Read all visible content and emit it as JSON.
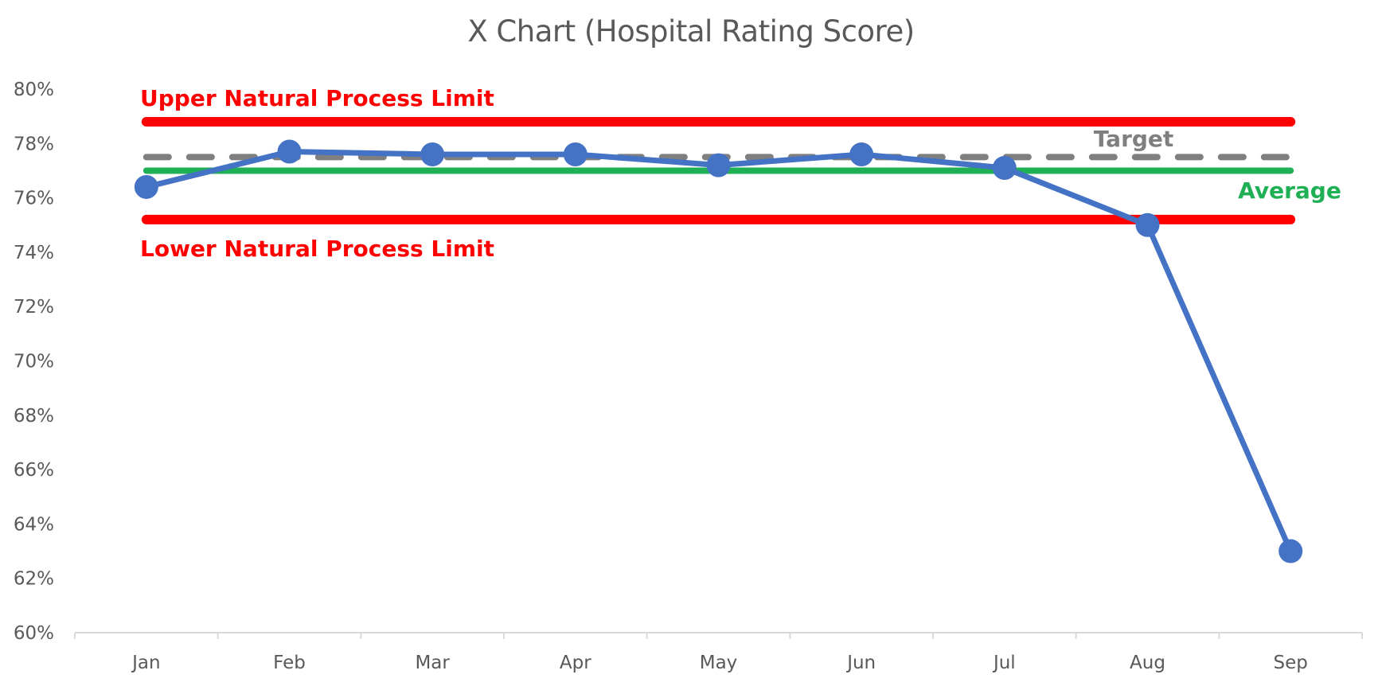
{
  "chart_data": {
    "type": "line",
    "title": "X Chart (Hospital Rating Score)",
    "xlabel": "",
    "ylabel": "",
    "categories": [
      "Jan",
      "Feb",
      "Mar",
      "Apr",
      "May",
      "Jun",
      "Jul",
      "Aug",
      "Sep"
    ],
    "series": [
      {
        "name": "Hospital Rating Score",
        "values": [
          76.4,
          77.7,
          77.6,
          77.6,
          77.2,
          77.6,
          77.1,
          75.0,
          63.0
        ],
        "color": "#4472C4"
      }
    ],
    "reference_lines": [
      {
        "name": "Upper Natural Process Limit",
        "value": 78.8,
        "color": "#FF0000",
        "style": "solid",
        "label": "Upper Natural Process Limit"
      },
      {
        "name": "Target",
        "value": 77.5,
        "color": "#7F7F7F",
        "style": "dashed",
        "label": "Target"
      },
      {
        "name": "Average",
        "value": 77.0,
        "color": "#1FAF55",
        "style": "solid",
        "label": "Average"
      },
      {
        "name": "Lower Natural Process Limit",
        "value": 75.2,
        "color": "#FF0000",
        "style": "solid",
        "label": "Lower Natural Process Limit"
      }
    ],
    "ylim": [
      60,
      80
    ],
    "yticks": [
      60,
      62,
      64,
      66,
      68,
      70,
      72,
      74,
      76,
      78,
      80
    ],
    "ytick_labels": [
      "60%",
      "62%",
      "64%",
      "66%",
      "68%",
      "70%",
      "72%",
      "74%",
      "76%",
      "78%",
      "80%"
    ],
    "y_format": "percent",
    "grid": false,
    "legend": "none (inline labels)"
  },
  "labels": {
    "title": "X Chart (Hospital Rating Score)",
    "unpl": "Upper Natural Process Limit",
    "lnpl": "Lower Natural Process Limit",
    "target": "Target",
    "average": "Average"
  },
  "colors": {
    "series": "#4472C4",
    "limit": "#FF0000",
    "target": "#7F7F7F",
    "average": "#1FAF55",
    "axis_text": "#595959",
    "axis_line": "#D9D9D9"
  }
}
